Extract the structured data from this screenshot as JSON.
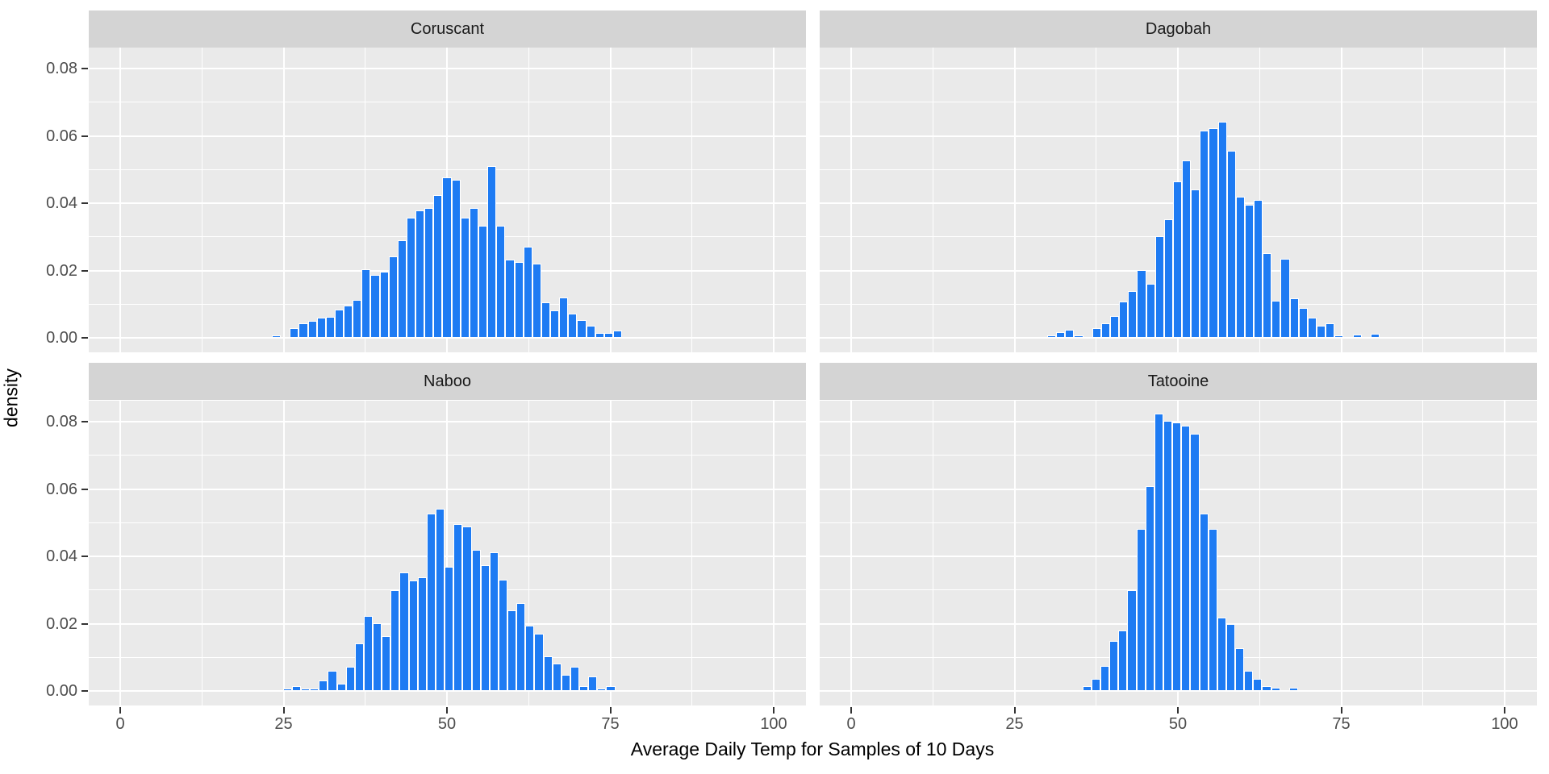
{
  "figure": {
    "x_axis": {
      "title": "Average Daily Temp for Samples of 10 Days",
      "tick_labels": [
        "0",
        "25",
        "50",
        "75",
        "100"
      ],
      "tick_values": [
        0,
        25,
        50,
        75,
        100
      ],
      "minor_tick_values": [
        12.5,
        37.5,
        62.5,
        87.5
      ],
      "range_shown": [
        -4.8,
        104.8
      ]
    },
    "y_axis": {
      "title": "density",
      "tick_labels": [
        "0.00",
        "0.02",
        "0.04",
        "0.06",
        "0.08"
      ],
      "tick_values": [
        0,
        0.02,
        0.04,
        0.06,
        0.08
      ],
      "minor_tick_values": [
        0.01,
        0.03,
        0.05,
        0.07
      ],
      "range_shown": [
        -0.0043,
        0.0862
      ]
    },
    "colors": {
      "bar_fill": "#1E7BF3",
      "bar_outline": "#FFFFFF",
      "panel_background": "#EAEAEA",
      "strip_background": "#D4D4D4",
      "gridline": "#FFFFFF",
      "tick_text": "#4D4D4D",
      "strip_text": "#1A1A1A",
      "axis_title_text": "#000000"
    }
  },
  "chart_data": [
    {
      "type": "bar",
      "subtype": "histogram",
      "facet": "Coruscant",
      "grid_row": 0,
      "grid_col": 0,
      "binwidth": 1.374,
      "first_bin_center": 23.9,
      "densities": [
        0.0003,
        0,
        0.0024,
        0.0039,
        0.0046,
        0.0055,
        0.0057,
        0.0078,
        0.0091,
        0.0108,
        0.0198,
        0.0183,
        0.0191,
        0.0237,
        0.0285,
        0.0352,
        0.0374,
        0.0382,
        0.042,
        0.0472,
        0.0464,
        0.0352,
        0.0382,
        0.0329,
        0.0505,
        0.0329,
        0.0228,
        0.022,
        0.0267,
        0.0215,
        0.01,
        0.0077,
        0.0115,
        0.0068,
        0.0047,
        0.0031,
        0.0009,
        0.0009,
        0.0016
      ]
    },
    {
      "type": "bar",
      "subtype": "histogram",
      "facet": "Dagobah",
      "grid_row": 0,
      "grid_col": 1,
      "binwidth": 1.374,
      "first_bin_center": 30.7,
      "densities": [
        0.0003,
        0.0013,
        0.0019,
        0.0003,
        0,
        0.0024,
        0.0039,
        0.0061,
        0.0103,
        0.0133,
        0.0197,
        0.0155,
        0.0296,
        0.0348,
        0.046,
        0.0521,
        0.0437,
        0.061,
        0.0619,
        0.0637,
        0.055,
        0.0415,
        0.0391,
        0.0406,
        0.0247,
        0.0105,
        0.023,
        0.0113,
        0.0083,
        0.0055,
        0.003,
        0.0038,
        0.0002,
        0,
        0.0005,
        0,
        0.0008
      ]
    },
    {
      "type": "bar",
      "subtype": "histogram",
      "facet": "Naboo",
      "grid_row": 1,
      "grid_col": 0,
      "binwidth": 1.374,
      "first_bin_center": 25.6,
      "densities": [
        0.0002,
        0.0009,
        0.0002,
        0.0002,
        0.0026,
        0.0054,
        0.0018,
        0.0068,
        0.0136,
        0.0219,
        0.0197,
        0.0158,
        0.0294,
        0.0348,
        0.0323,
        0.0333,
        0.0523,
        0.0537,
        0.0364,
        0.0491,
        0.0483,
        0.0415,
        0.037,
        0.0408,
        0.0325,
        0.0235,
        0.0257,
        0.019,
        0.0166,
        0.0099,
        0.0076,
        0.0044,
        0.0067,
        0.0009,
        0.0038,
        0.0002,
        0.001
      ]
    },
    {
      "type": "bar",
      "subtype": "histogram",
      "facet": "Tatooine",
      "grid_row": 1,
      "grid_col": 1,
      "binwidth": 1.374,
      "first_bin_center": 36.1,
      "densities": [
        0.001,
        0.0031,
        0.0069,
        0.0144,
        0.0174,
        0.0294,
        0.0476,
        0.0603,
        0.082,
        0.0798,
        0.0792,
        0.0784,
        0.076,
        0.0521,
        0.0476,
        0.0214,
        0.0195,
        0.0123,
        0.0055,
        0.0031,
        0.001,
        0.0004,
        0,
        0.0004
      ]
    }
  ]
}
